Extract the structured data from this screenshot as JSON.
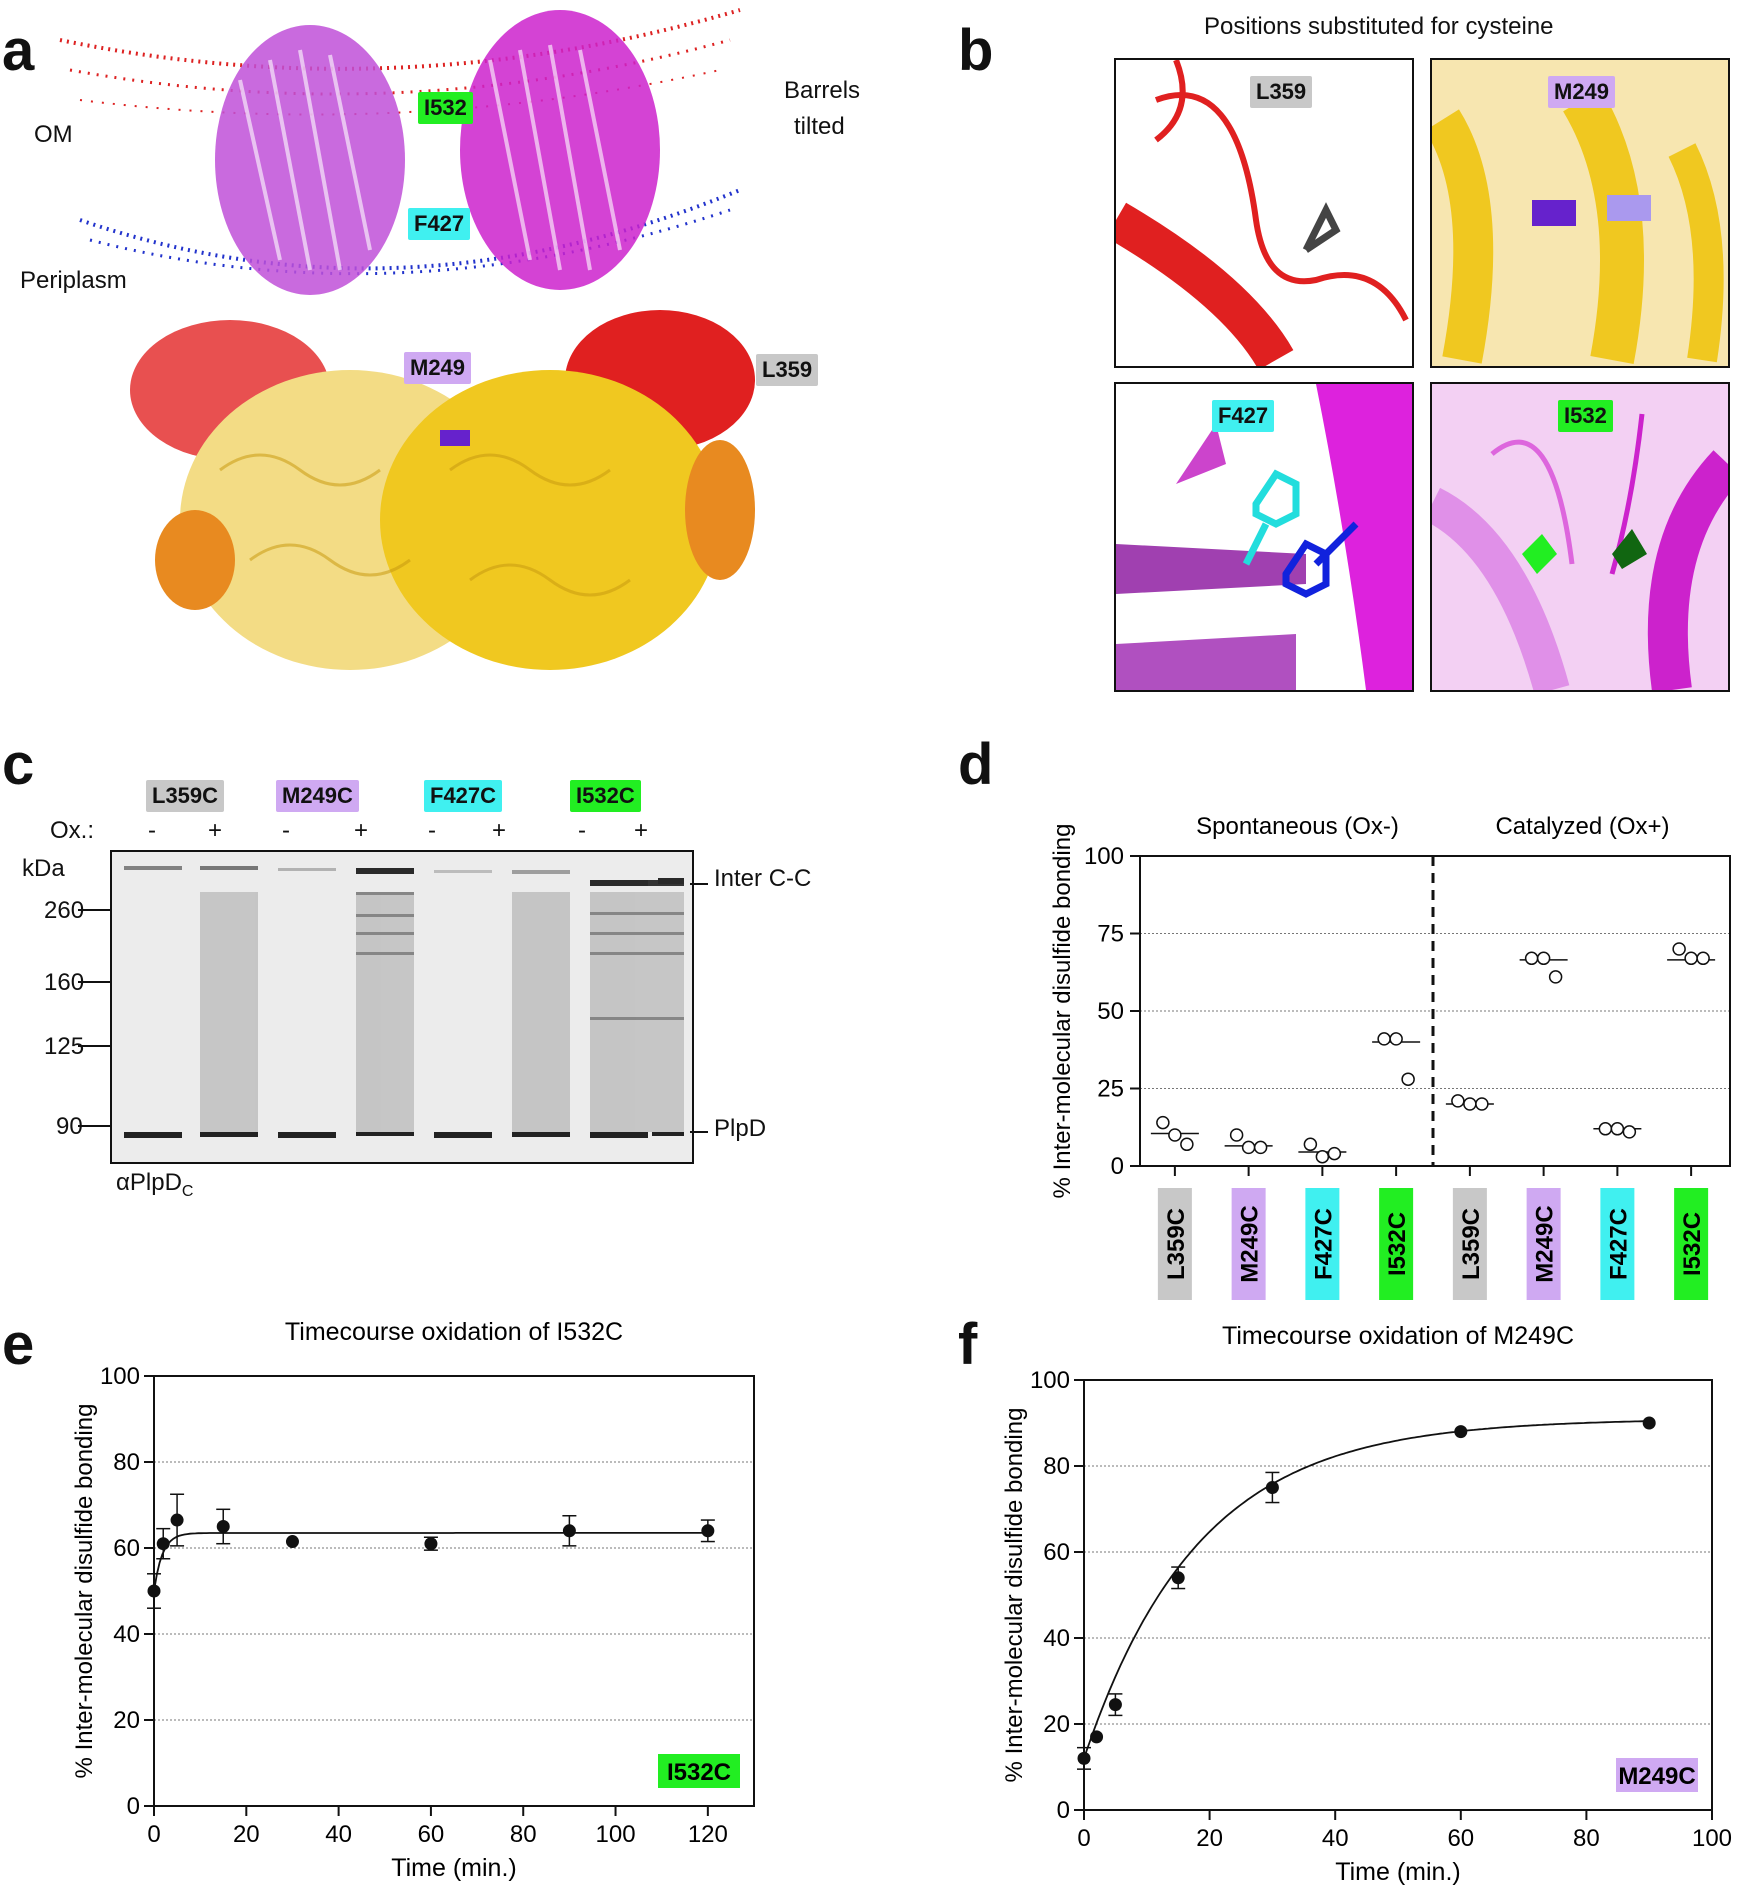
{
  "panels": {
    "a": "a",
    "b": "b",
    "c": "c",
    "d": "d",
    "e": "e",
    "f": "f"
  },
  "panel_a": {
    "om": "OM",
    "periplasm": "Periplasm",
    "barrels_line1": "Barrels",
    "barrels_line2": "tilted",
    "tags": {
      "i532": "I532",
      "f427": "F427",
      "m249": "M249",
      "l359": "L359"
    },
    "colors": {
      "membrane_top": "#dd2222",
      "membrane_bottom": "#2233cc",
      "barrel_left": "#c050d8",
      "barrel_right": "#cc22cc",
      "domain_red": "#e02020",
      "domain_yellow": "#f0c820",
      "domain_orange": "#e88a20"
    }
  },
  "panel_b": {
    "title": "Positions substituted for cysteine",
    "insets": [
      {
        "tag": "L359",
        "color": "grey"
      },
      {
        "tag": "M249",
        "color": "purple"
      },
      {
        "tag": "F427",
        "color": "cyan"
      },
      {
        "tag": "I532",
        "color": "green"
      }
    ]
  },
  "panel_c": {
    "ox_label": "Ox.:",
    "kda_label": "kDa",
    "samples": [
      {
        "name": "L359C",
        "color": "grey",
        "lanes": [
          "-",
          "+"
        ]
      },
      {
        "name": "M249C",
        "color": "purple",
        "lanes": [
          "-",
          "+"
        ]
      },
      {
        "name": "F427C",
        "color": "cyan",
        "lanes": [
          "-",
          "+"
        ]
      },
      {
        "name": "I532C",
        "color": "green",
        "lanes": [
          "-",
          "+"
        ]
      }
    ],
    "markers": [
      {
        "kda": "260"
      },
      {
        "kda": "160"
      },
      {
        "kda": "125"
      },
      {
        "kda": "90"
      }
    ],
    "right_labels": {
      "inter": "Inter C-C",
      "plpd": "PlpD"
    },
    "antibody": "αPlpD",
    "antibody_sub": "C"
  },
  "chart_data": [
    {
      "panel": "d",
      "type": "scatter",
      "ylabel": "% Inter-molecular disulfide bonding",
      "ylim": [
        0,
        100
      ],
      "yticks": [
        0,
        25,
        50,
        75,
        100
      ],
      "grid": true,
      "group_labels": [
        "Spontaneous (Ox-)",
        "Catalyzed (Ox+)"
      ],
      "categories": [
        "L359C",
        "M249C",
        "F427C",
        "I532C",
        "L359C",
        "M249C",
        "F427C",
        "I532C"
      ],
      "category_colors": [
        "grey",
        "purple",
        "cyan",
        "green",
        "grey",
        "purple",
        "cyan",
        "green"
      ],
      "points": [
        [
          14,
          10,
          7
        ],
        [
          10,
          6,
          6
        ],
        [
          7,
          3,
          4
        ],
        [
          41,
          41,
          28
        ],
        [
          21,
          20,
          20
        ],
        [
          67,
          67,
          61
        ],
        [
          12,
          12,
          11
        ],
        [
          70,
          67,
          67
        ]
      ],
      "means": [
        10.5,
        6.5,
        4.5,
        40,
        20,
        66.5,
        12,
        66.5
      ]
    },
    {
      "panel": "e",
      "type": "scatter",
      "title": "Timecourse oxidation of I532C",
      "xlabel": "Time (min.)",
      "ylabel": "% Inter-molecular disulfide bonding",
      "xlim": [
        0,
        130
      ],
      "ylim": [
        0,
        100
      ],
      "xticks": [
        0,
        20,
        40,
        60,
        80,
        100,
        120
      ],
      "yticks": [
        0,
        20,
        40,
        60,
        80,
        100
      ],
      "grid": true,
      "tag": "I532C",
      "x": [
        0,
        2,
        5,
        15,
        30,
        60,
        90,
        120
      ],
      "y": [
        50,
        61,
        66.5,
        65,
        61.5,
        61,
        64,
        64
      ],
      "err": [
        4,
        3.5,
        6,
        4,
        0,
        1.5,
        3.5,
        2.5
      ],
      "fit": {
        "y0": 50,
        "plateau": 63.5,
        "k": 0.55
      }
    },
    {
      "panel": "f",
      "type": "scatter",
      "title": "Timecourse oxidation of M249C",
      "xlabel": "Time (min.)",
      "ylabel": "% Inter-molecular disulfide bonding",
      "xlim": [
        0,
        100
      ],
      "ylim": [
        0,
        100
      ],
      "xticks": [
        0,
        20,
        40,
        60,
        80,
        100
      ],
      "yticks": [
        0,
        20,
        40,
        60,
        80,
        100
      ],
      "grid": true,
      "tag": "M249C",
      "x": [
        0,
        2,
        5,
        15,
        30,
        60,
        90
      ],
      "y": [
        12,
        17,
        24.5,
        54,
        75,
        88,
        90
      ],
      "err": [
        2.5,
        0,
        2.5,
        2.5,
        3.5,
        0,
        0
      ],
      "fit": {
        "y0": 12,
        "plateau": 91,
        "k": 0.055
      }
    }
  ]
}
